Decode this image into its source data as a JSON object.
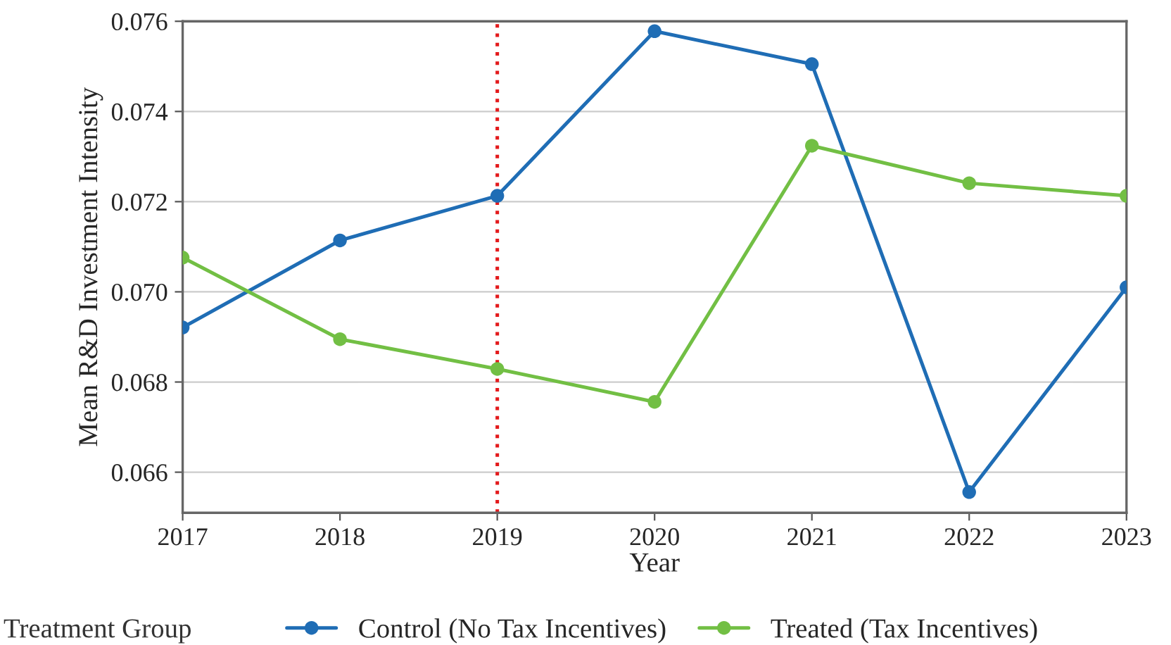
{
  "chart_data": {
    "type": "line",
    "xlabel": "Year",
    "ylabel": "Mean R&D Investment Intensity",
    "legend_title": "Treatment Group",
    "x": [
      2017,
      2018,
      2019,
      2020,
      2021,
      2022,
      2023
    ],
    "series": [
      {
        "name": "Control (No Tax Incentives)",
        "color": "#1f6db5",
        "values": [
          0.06921,
          0.07114,
          0.07213,
          0.07578,
          0.07505,
          0.06556,
          0.0701
        ]
      },
      {
        "name": "Treated (Tax Incentives)",
        "color": "#72bf44",
        "values": [
          0.07076,
          0.06895,
          0.06829,
          0.06756,
          0.07324,
          0.07241,
          0.07213
        ]
      }
    ],
    "xlim": [
      2017,
      2023
    ],
    "xticks": [
      2017,
      2018,
      2019,
      2020,
      2021,
      2022,
      2023
    ],
    "ylim": [
      0.0651,
      0.076
    ],
    "yticks": [
      0.066,
      0.068,
      {
        "value": 0.07,
        "label": "0.070"
      },
      0.072,
      0.074,
      0.076
    ],
    "ref_lines": [
      {
        "axis": "x",
        "value": 2019,
        "color": "#e31a1c",
        "line_style": "dotted"
      }
    ],
    "grid": "y",
    "legend": "bottom",
    "marker": "circle",
    "line_style": "solid"
  }
}
